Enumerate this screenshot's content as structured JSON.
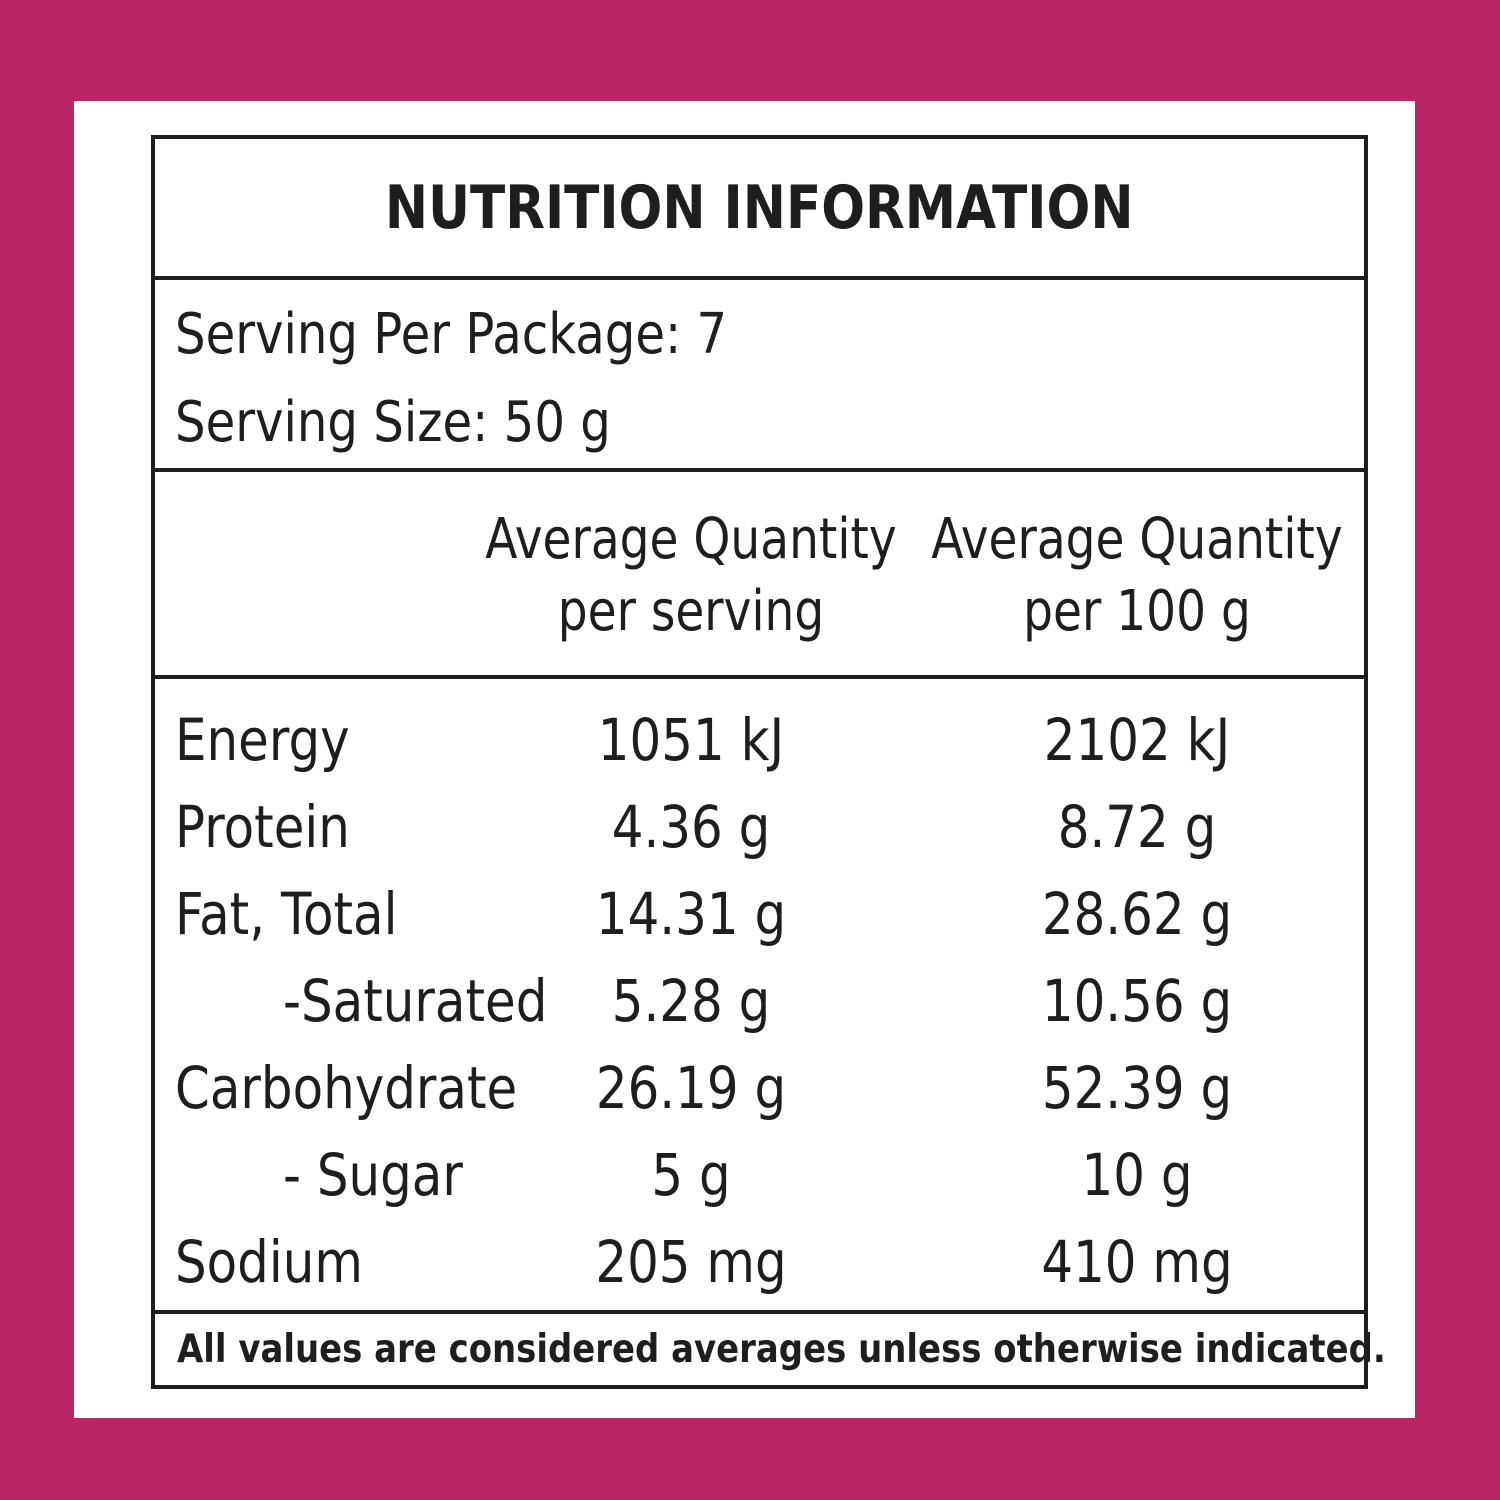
{
  "colors": {
    "background": "#ba2566",
    "card": "#ffffff",
    "ink": "#1e1e1e"
  },
  "label": {
    "title": "NUTRITION INFORMATION",
    "servings_per_package": "Serving Per Package: 7",
    "serving_size": "Serving Size: 50 g",
    "columns": [
      {
        "line1": "Average Quantity",
        "line2": "per serving"
      },
      {
        "line1": "Average Quantity",
        "line2": "per 100 g"
      }
    ],
    "rows": [
      {
        "name": "Energy",
        "per_serving": "1051 kJ",
        "per_100g": "2102 kJ"
      },
      {
        "name": "Protein",
        "per_serving": "4.36 g",
        "per_100g": "8.72 g"
      },
      {
        "name": "Fat, Total",
        "per_serving": "14.31 g",
        "per_100g": "28.62 g"
      },
      {
        "name": "-Saturated",
        "per_serving": "5.28 g",
        "per_100g": "10.56 g"
      },
      {
        "name": "Carbohydrate",
        "per_serving": "26.19 g",
        "per_100g": "52.39 g"
      },
      {
        "name": "- Sugar",
        "per_serving": "5 g",
        "per_100g": "10 g"
      },
      {
        "name": "Sodium",
        "per_serving": "205 mg",
        "per_100g": "410 mg"
      }
    ],
    "footnote": "All values are considered averages unless otherwise indicated."
  }
}
